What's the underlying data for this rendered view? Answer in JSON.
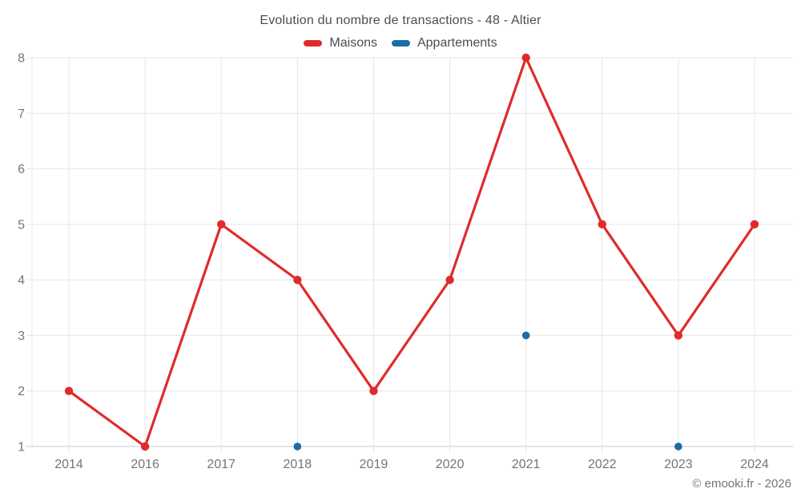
{
  "title": "Evolution du nombre de transactions - 48 - Altier",
  "copyright": "© emooki.fr - 2026",
  "colors": {
    "background": "#ffffff",
    "grid": "#e6e6e6",
    "axis": "#c9c9c9",
    "tick_label": "#757575",
    "title_text": "#4d4d4d",
    "maisons": "#e02b2b",
    "appartements": "#1a6ca4"
  },
  "chart_data": {
    "type": "line",
    "title": "Evolution du nombre de transactions - 48 - Altier",
    "xlabel": "",
    "ylabel": "",
    "categories": [
      "2014",
      "2016",
      "2017",
      "2018",
      "2019",
      "2020",
      "2021",
      "2022",
      "2023",
      "2024"
    ],
    "yticks": [
      1,
      2,
      3,
      4,
      5,
      6,
      7,
      8
    ],
    "ylim": [
      1,
      8
    ],
    "grid": true,
    "legend_position": "top",
    "series": [
      {
        "name": "Maisons",
        "color": "#e02b2b",
        "draw_line": true,
        "values": [
          2,
          1,
          5,
          4,
          2,
          4,
          8,
          5,
          3,
          5
        ]
      },
      {
        "name": "Appartements",
        "color": "#1a6ca4",
        "draw_line": false,
        "values": [
          null,
          null,
          null,
          1,
          null,
          null,
          3,
          null,
          1,
          null
        ]
      }
    ]
  }
}
